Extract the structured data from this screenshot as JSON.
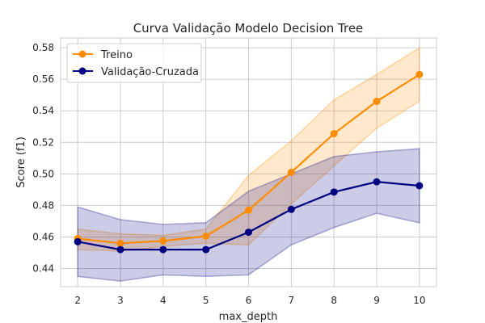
{
  "chart_data": {
    "type": "line",
    "title": "Curva Validação Modelo Decision Tree",
    "xlabel": "max_depth",
    "ylabel": "Score (f1)",
    "x": [
      2,
      3,
      4,
      5,
      6,
      7,
      8,
      9,
      10
    ],
    "xlim": [
      1.6,
      10.4
    ],
    "ylim": [
      0.4285,
      0.5862
    ],
    "yticks": [
      0.44,
      0.46,
      0.48,
      0.5,
      0.52,
      0.54,
      0.56,
      0.58
    ],
    "grid": true,
    "legend_position": "top-left",
    "series": [
      {
        "name": "Treino",
        "color": "#ff8c00",
        "values": [
          0.459,
          0.456,
          0.4575,
          0.4605,
          0.477,
          0.501,
          0.5255,
          0.546,
          0.563
        ],
        "band_lower": [
          0.452,
          0.451,
          0.454,
          0.456,
          0.455,
          0.481,
          0.505,
          0.529,
          0.546
        ],
        "band_upper": [
          0.465,
          0.462,
          0.461,
          0.465,
          0.499,
          0.521,
          0.547,
          0.563,
          0.58
        ]
      },
      {
        "name": "Validação-Cruzada",
        "color": "#000080",
        "values": [
          0.457,
          0.452,
          0.452,
          0.452,
          0.463,
          0.4775,
          0.4885,
          0.495,
          0.4925
        ],
        "band_lower": [
          0.435,
          0.432,
          0.436,
          0.435,
          0.436,
          0.455,
          0.466,
          0.475,
          0.469
        ],
        "band_upper": [
          0.479,
          0.471,
          0.468,
          0.469,
          0.489,
          0.5,
          0.511,
          0.514,
          0.516
        ]
      }
    ]
  }
}
